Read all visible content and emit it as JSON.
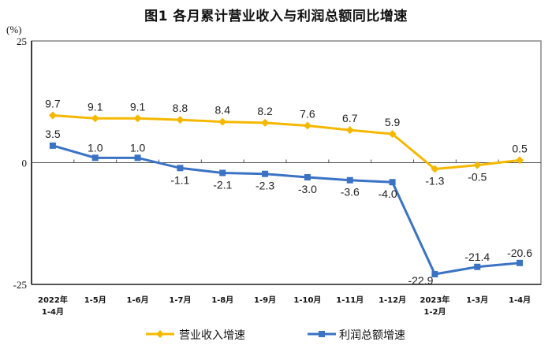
{
  "chart_data": {
    "type": "line",
    "title": "图1  各月累计营业收入与利润总额同比增速",
    "unit_label": "(%)",
    "xlabel": "",
    "ylabel": "%",
    "ylim": [
      -25,
      25
    ],
    "yticks": [
      "25",
      "0",
      "-25"
    ],
    "grid": false,
    "legend_position": "bottom",
    "categories": [
      "2022年\n1-4月",
      "1-5月",
      "1-6月",
      "1-7月",
      "1-8月",
      "1-9月",
      "1-10月",
      "1-11月",
      "1-12月",
      "2023年\n1-2月",
      "1-3月",
      "1-4月"
    ],
    "category_lines": [
      [
        "2022年",
        "1-4月"
      ],
      [
        "1-5月"
      ],
      [
        "1-6月"
      ],
      [
        "1-7月"
      ],
      [
        "1-8月"
      ],
      [
        "1-9月"
      ],
      [
        "1-10月"
      ],
      [
        "1-11月"
      ],
      [
        "1-12月"
      ],
      [
        "2023年",
        "1-2月"
      ],
      [
        "1-3月"
      ],
      [
        "1-4月"
      ]
    ],
    "series": [
      {
        "name": "营业收入增速",
        "color": "#F5B800",
        "marker": "diamond",
        "values": [
          9.7,
          9.1,
          9.1,
          8.8,
          8.4,
          8.2,
          7.6,
          6.7,
          5.9,
          -1.3,
          -0.5,
          0.5
        ],
        "labels": [
          "9.7",
          "9.1",
          "9.1",
          "8.8",
          "8.4",
          "8.2",
          "7.6",
          "6.7",
          "5.9",
          "-1.3",
          "-0.5",
          "0.5"
        ]
      },
      {
        "name": "利润总额增速",
        "color": "#3A72C4",
        "marker": "square",
        "values": [
          3.5,
          1.0,
          1.0,
          -1.1,
          -2.1,
          -2.3,
          -3.0,
          -3.6,
          -4.0,
          -22.9,
          -21.4,
          -20.6
        ],
        "labels": [
          "3.5",
          "1.0",
          "1.0",
          "-1.1",
          "-2.1",
          "-2.3",
          "-3.0",
          "-3.6",
          "-4.0",
          "-22.9",
          "-21.4",
          "-20.6"
        ]
      }
    ]
  }
}
